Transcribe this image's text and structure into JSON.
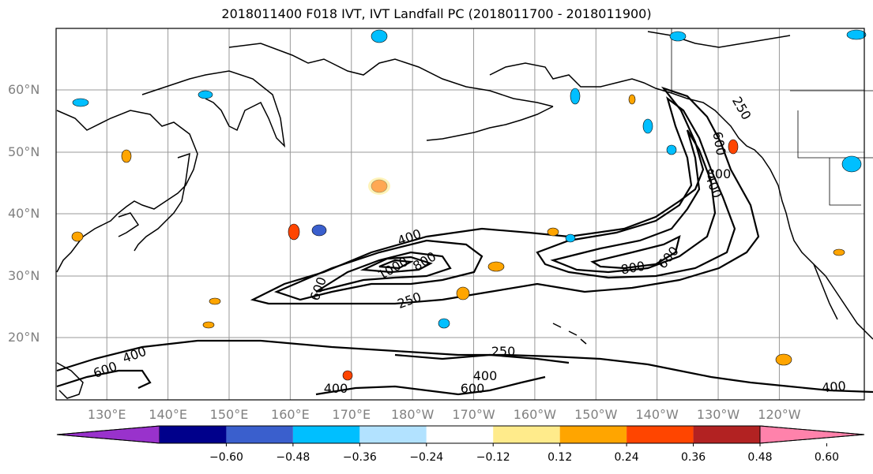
{
  "title": "2018011400 F018 IVT, IVT Landfall PC (2018011700 - 2018011900)",
  "lat_labels": [
    "60°N",
    "50°N",
    "40°N",
    "30°N",
    "20°N"
  ],
  "lon_labels": [
    "130°E",
    "140°E",
    "150°E",
    "160°E",
    "170°E",
    "180°W",
    "170°W",
    "160°W",
    "150°W",
    "140°W",
    "130°W",
    "120°W"
  ],
  "contour_labels": [
    "400",
    "1000",
    "800",
    "600",
    "250",
    "800",
    "600",
    "600",
    "800",
    "400",
    "400",
    "600",
    "250",
    "400",
    "600",
    "400",
    "400",
    "250"
  ],
  "colorbar": {
    "tick_labels": [
      "−0.60",
      "−0.48",
      "−0.36",
      "−0.24",
      "−0.12",
      "0.12",
      "0.24",
      "0.36",
      "0.48",
      "0.60"
    ],
    "colors": [
      "#9932cc",
      "#00008b",
      "#3a5fcd",
      "#00bfff",
      "#b2e2ff",
      "#ffffff",
      "#ffeb8b",
      "#ffa500",
      "#ff4500",
      "#b22222",
      "#ff82ab"
    ]
  }
}
